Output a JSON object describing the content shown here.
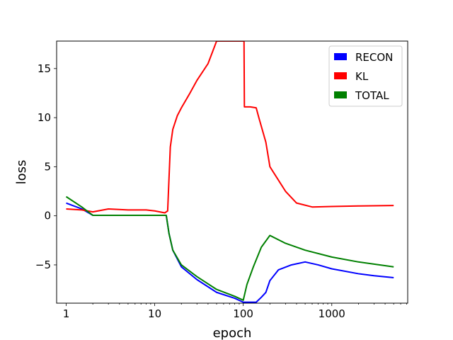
{
  "chart_data": {
    "type": "line",
    "xlabel": "epoch",
    "ylabel": "loss",
    "xscale": "log",
    "xlim": [
      0.78,
      7200
    ],
    "ylim": [
      -8.9,
      17.8
    ],
    "xticks": [
      {
        "value": 1,
        "label": "1"
      },
      {
        "value": 10,
        "label": "10"
      },
      {
        "value": 100,
        "label": "100"
      },
      {
        "value": 1000,
        "label": "1000"
      }
    ],
    "yticks": [
      {
        "value": -5,
        "label": "−5"
      },
      {
        "value": 0,
        "label": "0"
      },
      {
        "value": 5,
        "label": "5"
      },
      {
        "value": 10,
        "label": "10"
      },
      {
        "value": 15,
        "label": "15"
      }
    ],
    "legend": {
      "placement": "upper right",
      "entries": [
        {
          "label": "RECON",
          "color": "#0000ff"
        },
        {
          "label": "KL",
          "color": "#ff0000"
        },
        {
          "label": "TOTAL",
          "color": "#008000"
        }
      ]
    },
    "series": [
      {
        "name": "RECON",
        "color": "#0000ff",
        "points": [
          [
            1,
            1.3
          ],
          [
            1.5,
            0.7
          ],
          [
            2,
            0.05
          ],
          [
            5,
            0.05
          ],
          [
            13.5,
            0.05
          ],
          [
            14.5,
            -1.8
          ],
          [
            16,
            -3.5
          ],
          [
            20,
            -5.2
          ],
          [
            30,
            -6.5
          ],
          [
            50,
            -7.8
          ],
          [
            80,
            -8.4
          ],
          [
            100,
            -8.8
          ],
          [
            140,
            -8.8
          ],
          [
            160,
            -8.3
          ],
          [
            180,
            -7.8
          ],
          [
            200,
            -6.6
          ],
          [
            250,
            -5.5
          ],
          [
            350,
            -5.0
          ],
          [
            500,
            -4.7
          ],
          [
            700,
            -5.0
          ],
          [
            1000,
            -5.4
          ],
          [
            2000,
            -5.9
          ],
          [
            3000,
            -6.1
          ],
          [
            5000,
            -6.3
          ]
        ]
      },
      {
        "name": "KL",
        "color": "#ff0000",
        "points": [
          [
            1,
            0.7
          ],
          [
            1.5,
            0.6
          ],
          [
            2,
            0.4
          ],
          [
            3,
            0.7
          ],
          [
            5,
            0.6
          ],
          [
            8,
            0.6
          ],
          [
            10,
            0.5
          ],
          [
            13,
            0.3
          ],
          [
            14,
            0.5
          ],
          [
            15,
            7.0
          ],
          [
            16,
            8.8
          ],
          [
            18,
            10.2
          ],
          [
            20,
            11.0
          ],
          [
            25,
            12.5
          ],
          [
            30,
            13.8
          ],
          [
            40,
            15.5
          ],
          [
            50,
            17.8
          ],
          [
            53,
            17.8
          ],
          [
            102,
            17.8
          ],
          [
            103,
            11.1
          ],
          [
            120,
            11.1
          ],
          [
            140,
            11.0
          ],
          [
            150,
            10.0
          ],
          [
            180,
            7.5
          ],
          [
            200,
            5.0
          ],
          [
            300,
            2.5
          ],
          [
            400,
            1.3
          ],
          [
            600,
            0.9
          ],
          [
            1000,
            0.95
          ],
          [
            2000,
            1.0
          ],
          [
            5000,
            1.05
          ]
        ]
      },
      {
        "name": "TOTAL",
        "color": "#008000",
        "points": [
          [
            1,
            1.95
          ],
          [
            1.5,
            0.9
          ],
          [
            2,
            0.05
          ],
          [
            5,
            0.05
          ],
          [
            13.5,
            0.05
          ],
          [
            14.5,
            -1.8
          ],
          [
            16,
            -3.5
          ],
          [
            20,
            -5.0
          ],
          [
            30,
            -6.2
          ],
          [
            50,
            -7.5
          ],
          [
            80,
            -8.2
          ],
          [
            100,
            -8.6
          ],
          [
            110,
            -7.0
          ],
          [
            130,
            -5.2
          ],
          [
            160,
            -3.2
          ],
          [
            200,
            -2.0
          ],
          [
            300,
            -2.8
          ],
          [
            500,
            -3.5
          ],
          [
            1000,
            -4.2
          ],
          [
            2000,
            -4.7
          ],
          [
            5000,
            -5.2
          ]
        ]
      }
    ]
  }
}
